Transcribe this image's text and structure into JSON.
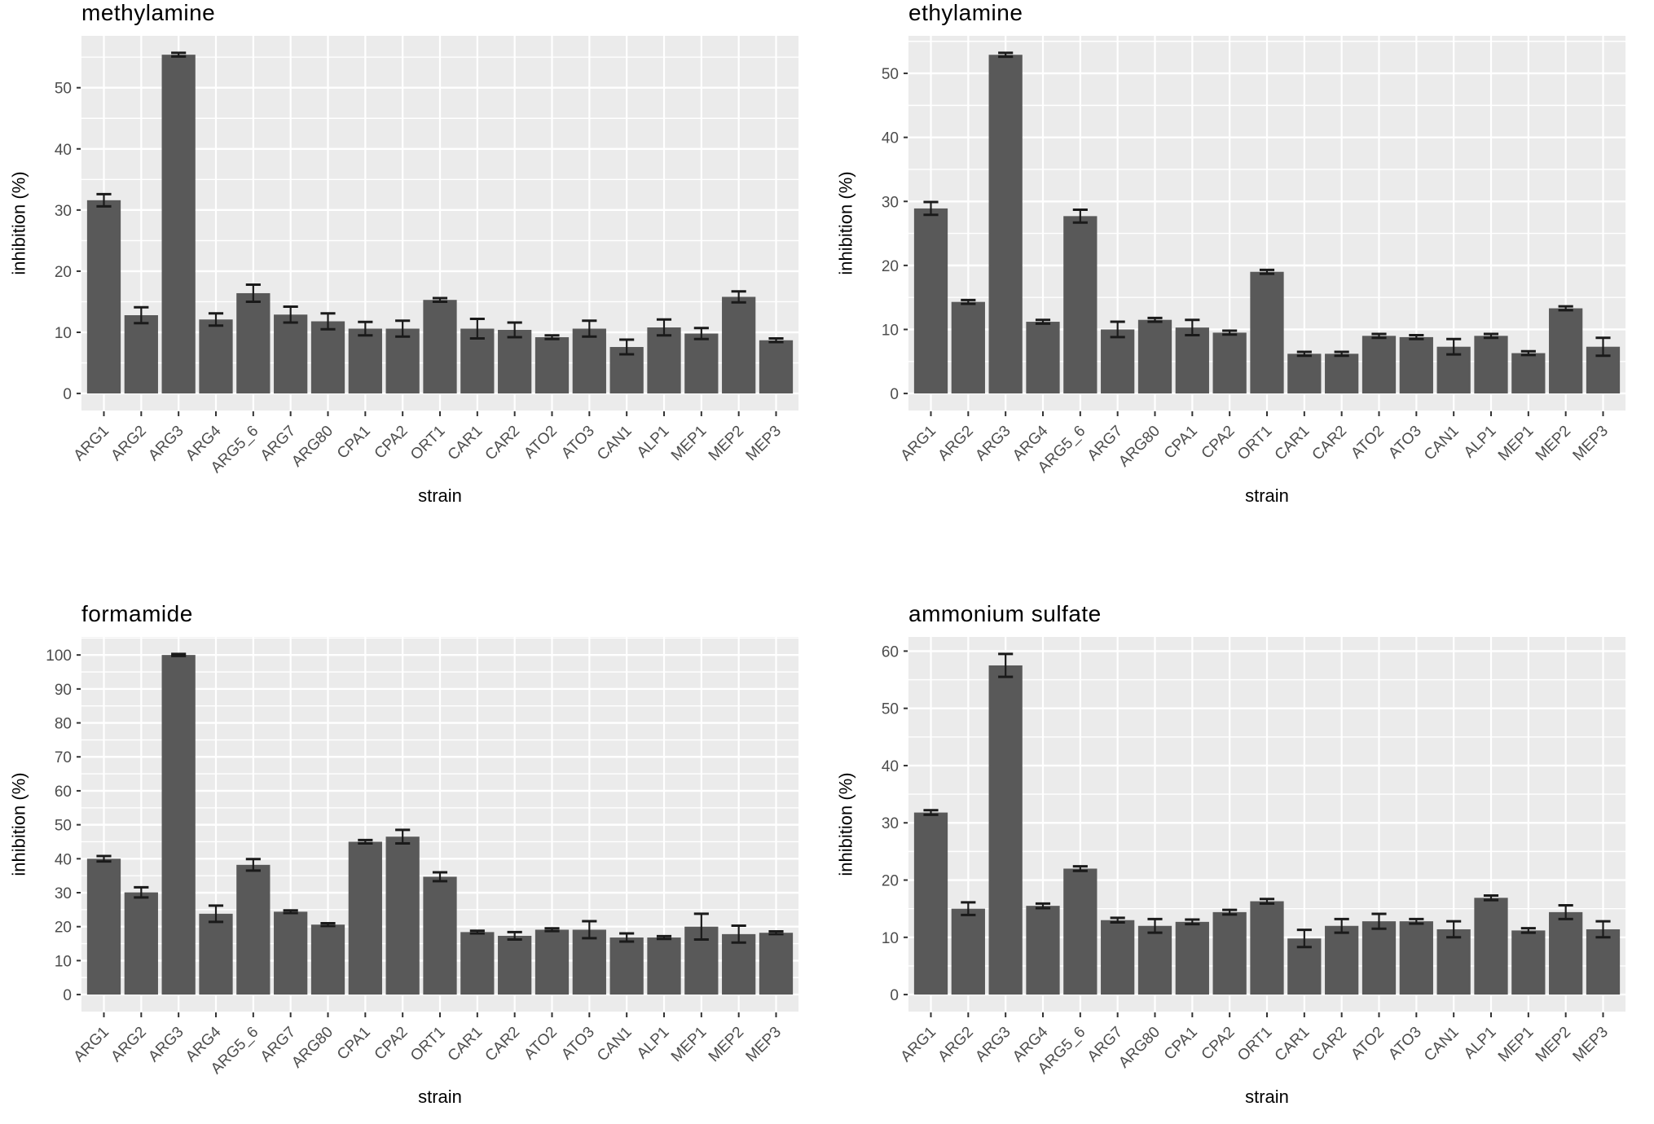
{
  "page": {
    "background": "#ffffff"
  },
  "styles": {
    "bar_fill": "#595959",
    "panel_bg": "#ebebeb",
    "grid_color": "#ffffff",
    "tick_text_color": "#4d4d4d",
    "tick_mark_color": "#333333",
    "error_color": "#1a1a1a",
    "title_color": "#000000"
  },
  "chart_data": [
    {
      "type": "bar",
      "title": "methylamine",
      "xlabel": "strain",
      "ylabel": "inhibition (%)",
      "legend": "none",
      "grid": "on",
      "categories": [
        "ARG1",
        "ARG2",
        "ARG3",
        "ARG4",
        "ARG5_6",
        "ARG7",
        "ARG80",
        "CPA1",
        "CPA2",
        "ORT1",
        "CAR1",
        "CAR2",
        "ATO2",
        "ATO3",
        "CAN1",
        "ALP1",
        "MEP1",
        "MEP2",
        "MEP3"
      ],
      "values": [
        31.6,
        12.8,
        55.4,
        12.1,
        16.4,
        12.9,
        11.8,
        10.6,
        10.6,
        15.3,
        10.6,
        10.4,
        9.2,
        10.6,
        7.6,
        10.8,
        9.8,
        15.8,
        8.7
      ],
      "errors": [
        1.0,
        1.3,
        0.3,
        1.0,
        1.4,
        1.3,
        1.3,
        1.1,
        1.3,
        0.3,
        1.6,
        1.2,
        0.3,
        1.3,
        1.2,
        1.3,
        0.9,
        0.9,
        0.3
      ],
      "yticks": [
        0,
        10,
        20,
        30,
        40,
        50
      ],
      "ylim": [
        0,
        58
      ]
    },
    {
      "type": "bar",
      "title": "ethylamine",
      "xlabel": "strain",
      "ylabel": "inhibition (%)",
      "legend": "none",
      "grid": "on",
      "categories": [
        "ARG1",
        "ARG2",
        "ARG3",
        "ARG4",
        "ARG5_6",
        "ARG7",
        "ARG80",
        "CPA1",
        "CPA2",
        "ORT1",
        "CAR1",
        "CAR2",
        "ATO2",
        "ATO3",
        "CAN1",
        "ALP1",
        "MEP1",
        "MEP2",
        "MEP3"
      ],
      "values": [
        28.9,
        14.3,
        52.9,
        11.2,
        27.7,
        10.0,
        11.5,
        10.3,
        9.5,
        19.0,
        6.2,
        6.2,
        9.0,
        8.8,
        7.3,
        9.0,
        6.3,
        13.3,
        7.3
      ],
      "errors": [
        1.0,
        0.3,
        0.3,
        0.3,
        1.0,
        1.2,
        0.3,
        1.2,
        0.3,
        0.3,
        0.3,
        0.3,
        0.3,
        0.3,
        1.2,
        0.3,
        0.3,
        0.3,
        1.4
      ],
      "yticks": [
        0,
        10,
        20,
        30,
        40,
        50
      ],
      "ylim": [
        0,
        56
      ]
    },
    {
      "type": "bar",
      "title": "formamide",
      "xlabel": "strain",
      "ylabel": "inhibition (%)",
      "legend": "none",
      "grid": "on",
      "categories": [
        "ARG1",
        "ARG2",
        "ARG3",
        "ARG4",
        "ARG5_6",
        "ARG7",
        "ARG80",
        "CPA1",
        "CPA2",
        "ORT1",
        "CAR1",
        "CAR2",
        "ATO2",
        "ATO3",
        "CAN1",
        "ALP1",
        "MEP1",
        "MEP2",
        "MEP3"
      ],
      "values": [
        40.0,
        30.1,
        100.0,
        23.8,
        38.2,
        24.4,
        20.6,
        45.0,
        46.5,
        34.7,
        18.4,
        17.3,
        19.1,
        19.1,
        16.8,
        16.8,
        20.0,
        17.8,
        18.2
      ],
      "errors": [
        0.8,
        1.5,
        0.3,
        2.4,
        1.7,
        0.4,
        0.4,
        0.5,
        2.0,
        1.3,
        0.4,
        1.1,
        0.4,
        2.5,
        1.2,
        0.4,
        3.8,
        2.5,
        0.4
      ],
      "yticks": [
        0,
        10,
        20,
        30,
        40,
        50,
        60,
        70,
        80,
        90,
        100
      ],
      "ylim": [
        0,
        105
      ]
    },
    {
      "type": "bar",
      "title": "ammonium sulfate",
      "xlabel": "strain",
      "ylabel": "inhibition (%)",
      "legend": "none",
      "grid": "on",
      "categories": [
        "ARG1",
        "ARG2",
        "ARG3",
        "ARG4",
        "ARG5_6",
        "ARG7",
        "ARG80",
        "CPA1",
        "CPA2",
        "ORT1",
        "CAR1",
        "CAR2",
        "ATO2",
        "ATO3",
        "CAN1",
        "ALP1",
        "MEP1",
        "MEP2",
        "MEP3"
      ],
      "values": [
        31.8,
        15.0,
        57.5,
        15.5,
        22.0,
        13.0,
        12.0,
        12.7,
        14.4,
        16.3,
        9.8,
        12.0,
        12.8,
        12.8,
        11.4,
        16.9,
        11.2,
        14.4,
        11.4
      ],
      "errors": [
        0.4,
        1.1,
        2.0,
        0.4,
        0.4,
        0.4,
        1.2,
        0.4,
        0.4,
        0.4,
        1.5,
        1.2,
        1.3,
        0.4,
        1.4,
        0.4,
        0.4,
        1.2,
        1.4
      ],
      "yticks": [
        0,
        10,
        20,
        30,
        40,
        50,
        60
      ],
      "ylim": [
        0,
        62
      ]
    }
  ]
}
